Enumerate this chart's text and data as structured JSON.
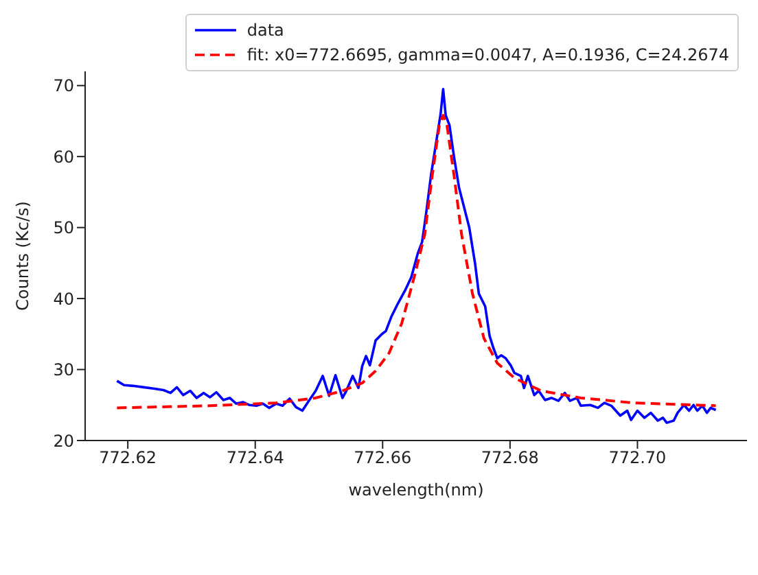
{
  "chart_data": {
    "type": "line",
    "xlabel": "wavelength(nm)",
    "ylabel": "Counts (Kc/s)",
    "xlim": [
      772.6133,
      772.7172
    ],
    "ylim": [
      20,
      72
    ],
    "xticks": [
      772.62,
      772.64,
      772.66,
      772.68,
      {
        "value": 772.7,
        "label": "772.70"
      }
    ],
    "yticks": [
      20,
      30,
      40,
      50,
      60,
      70
    ],
    "grid": false,
    "legend": "top right",
    "marker": "none",
    "series": [
      {
        "name": "data",
        "color": "#0000ff",
        "line_style": "solid",
        "x": [
          772.6183,
          772.6194,
          772.6208,
          772.6225,
          772.6242,
          772.6256,
          772.6267,
          772.6277,
          772.6287,
          772.6298,
          772.6308,
          772.6319,
          772.6329,
          772.6339,
          772.635,
          772.636,
          772.637,
          772.6381,
          772.6391,
          772.6402,
          772.6412,
          772.6422,
          772.6433,
          772.6443,
          772.6454,
          772.6464,
          772.6474,
          772.6485,
          772.6495,
          772.6506,
          772.6516,
          772.6526,
          772.6537,
          772.6543,
          772.6553,
          772.6562,
          772.6568,
          772.6574,
          772.658,
          772.6589,
          772.6599,
          772.6605,
          772.6614,
          772.6624,
          772.6635,
          772.6645,
          772.6655,
          772.6662,
          772.6668,
          772.6676,
          772.6684,
          772.6691,
          772.6695,
          772.6699,
          772.6705,
          772.6712,
          772.672,
          772.6728,
          772.6736,
          772.6745,
          772.6751,
          772.6761,
          772.6768,
          772.6774,
          772.678,
          772.6786,
          772.6793,
          772.6801,
          772.6807,
          772.6817,
          772.6822,
          772.6828,
          772.6838,
          772.6845,
          772.6855,
          772.6865,
          772.6876,
          772.6886,
          772.6894,
          772.6905,
          772.6911,
          772.6926,
          772.6938,
          772.6948,
          772.6959,
          772.6973,
          772.6984,
          772.699,
          772.7,
          772.7011,
          772.7021,
          772.7032,
          772.704,
          772.7046,
          772.7057,
          772.7063,
          772.7073,
          772.7081,
          772.7088,
          772.7094,
          772.7102,
          772.7109,
          772.7115,
          772.7123
        ],
        "values": [
          28.4,
          27.8,
          27.7,
          27.5,
          27.3,
          27.1,
          26.7,
          27.5,
          26.4,
          27.0,
          26.0,
          26.7,
          26.1,
          26.8,
          25.7,
          26.0,
          25.2,
          25.4,
          25.0,
          24.9,
          25.2,
          24.6,
          25.2,
          24.9,
          25.9,
          24.7,
          24.2,
          25.7,
          27.0,
          29.1,
          26.3,
          29.2,
          26.0,
          27.0,
          29.1,
          27.4,
          30.5,
          31.9,
          30.6,
          34.1,
          35.0,
          35.4,
          37.5,
          39.3,
          41.1,
          43.0,
          46.3,
          48.0,
          51.8,
          57.4,
          62.0,
          66.0,
          69.5,
          65.8,
          64.4,
          60.0,
          55.6,
          52.8,
          50.0,
          45.0,
          40.7,
          38.9,
          34.7,
          33.0,
          31.6,
          32.0,
          31.6,
          30.6,
          29.5,
          29.1,
          27.4,
          29.1,
          26.4,
          27.0,
          25.7,
          26.0,
          25.6,
          26.7,
          25.6,
          26.0,
          24.9,
          25.0,
          24.6,
          25.3,
          24.9,
          23.5,
          24.2,
          22.9,
          24.2,
          23.2,
          23.9,
          22.8,
          23.2,
          22.5,
          22.8,
          23.9,
          25.0,
          24.2,
          25.0,
          24.2,
          24.9,
          23.9,
          24.6,
          24.3
        ]
      },
      {
        "name": "fit: x0=772.6695, gamma=0.0047, A=0.1936, C=24.2674",
        "color": "#ff0000",
        "line_style": "dashed",
        "x": [
          772.6183,
          772.6329,
          772.6433,
          772.6495,
          772.6537,
          772.6568,
          772.6589,
          772.661,
          772.663,
          772.6651,
          772.6666,
          772.6678,
          772.6689,
          772.6695,
          772.6701,
          772.6712,
          772.6724,
          772.6741,
          772.6759,
          772.678,
          772.6807,
          772.6849,
          772.6911,
          772.6994,
          772.7123
        ],
        "values": [
          24.6,
          24.9,
          25.3,
          26.0,
          27.0,
          28.1,
          29.8,
          32.3,
          36.5,
          43.5,
          49.0,
          57.4,
          64.4,
          65.8,
          64.4,
          57.4,
          49.0,
          40.7,
          34.4,
          30.9,
          28.8,
          27.0,
          26.0,
          25.3,
          24.9
        ]
      }
    ]
  }
}
